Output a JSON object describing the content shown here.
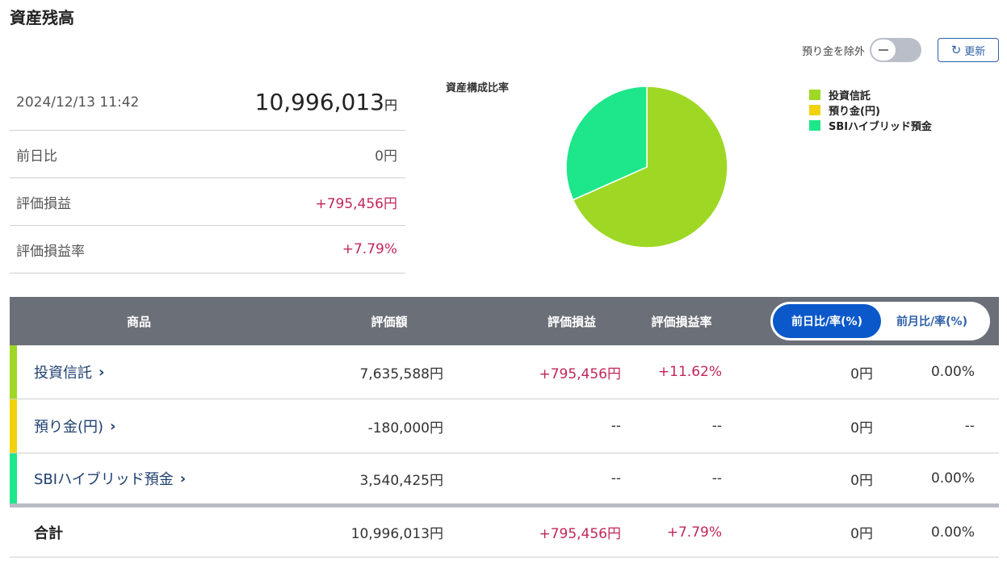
{
  "page_title": "資産残高",
  "controls": {
    "exclude_label": "預り金を除外",
    "refresh_label": "更新",
    "refresh_icon": "refresh-icon"
  },
  "summary": {
    "datetime": "2024/12/13 11:42",
    "total_amount": "10,996,013",
    "total_unit": "円",
    "rows": [
      {
        "label": "前日比",
        "value": "0円"
      },
      {
        "label": "評価損益",
        "value": "+795,456円"
      },
      {
        "label": "評価損益率",
        "value": "+7.79%"
      }
    ]
  },
  "chart_data": {
    "type": "pie",
    "title": "資産構成比率",
    "legend_position": "right",
    "slices": [
      {
        "name": "投資信託",
        "value": 7635588,
        "color": "#9ed825"
      },
      {
        "name": "預り金(円)",
        "value": 0,
        "color": "#f2d20c"
      },
      {
        "name": "SBIハイブリッド預金",
        "value": 3540425,
        "color": "#1ee68a"
      }
    ]
  },
  "table": {
    "headers": {
      "product": "商品",
      "valuation": "評価額",
      "pl": "評価損益",
      "pl_rate": "評価損益率"
    },
    "toggle": {
      "active": "前日比/率(%)",
      "inactive": "前月比/率(%)"
    },
    "rows": [
      {
        "name": "投資信託",
        "color": "#9ed825",
        "valuation": "7,635,588円",
        "pl": "+795,456円",
        "pl_rate": "+11.62%",
        "diff": "0円",
        "diff_rate": "0.00%"
      },
      {
        "name": "預り金(円)",
        "color": "#f2d20c",
        "valuation": "-180,000円",
        "pl": "--",
        "pl_rate": "--",
        "diff": "0円",
        "diff_rate": "--"
      },
      {
        "name": "SBIハイブリッド預金",
        "color": "#1ee68a",
        "valuation": "3,540,425円",
        "pl": "--",
        "pl_rate": "--",
        "diff": "0円",
        "diff_rate": "0.00%"
      }
    ],
    "total": {
      "name": "合計",
      "valuation": "10,996,013円",
      "pl": "+795,456円",
      "pl_rate": "+7.79%",
      "diff": "0円",
      "diff_rate": "0.00%"
    }
  },
  "colors": {
    "positive": "#c0265a",
    "accent": "#0a58c9",
    "header_bg": "#6b6f77"
  }
}
